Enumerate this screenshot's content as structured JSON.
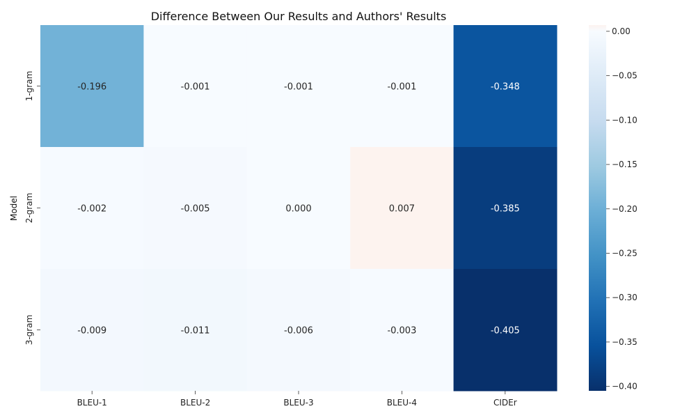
{
  "chart_data": {
    "type": "heatmap",
    "title": "Difference Between Our Results and Authors' Results",
    "xlabel": "",
    "ylabel": "Model",
    "x_categories": [
      "BLEU-1",
      "BLEU-2",
      "BLEU-3",
      "BLEU-4",
      "CIDEr"
    ],
    "y_categories": [
      "1-gram",
      "2-gram",
      "3-gram"
    ],
    "values": [
      [
        -0.196,
        -0.001,
        -0.001,
        -0.001,
        -0.348
      ],
      [
        -0.002,
        -0.005,
        0.0,
        0.007,
        -0.385
      ],
      [
        -0.009,
        -0.011,
        -0.006,
        -0.003,
        -0.405
      ]
    ],
    "value_labels": [
      [
        "-0.196",
        "-0.001",
        "-0.001",
        "-0.001",
        "-0.348"
      ],
      [
        "-0.002",
        "-0.005",
        "0.000",
        "0.007",
        "-0.385"
      ],
      [
        "-0.009",
        "-0.011",
        "-0.006",
        "-0.003",
        "-0.405"
      ]
    ],
    "colorbar": {
      "min": -0.405,
      "max": 0.007,
      "ticks": [
        0.0,
        -0.05,
        -0.1,
        -0.15,
        -0.2,
        -0.25,
        -0.3,
        -0.35,
        -0.4
      ],
      "tick_labels": [
        "0.00",
        "−0.05",
        "−0.10",
        "−0.15",
        "−0.20",
        "−0.25",
        "−0.30",
        "−0.35",
        "−0.40"
      ]
    },
    "colormap": "Blues reversed",
    "colors": [
      "#08306b",
      "#08519c",
      "#2171b5",
      "#4292c6",
      "#6baed6",
      "#9ecae1",
      "#c6dbef",
      "#deebf7",
      "#f7fbff",
      "#fdf3ef"
    ]
  }
}
